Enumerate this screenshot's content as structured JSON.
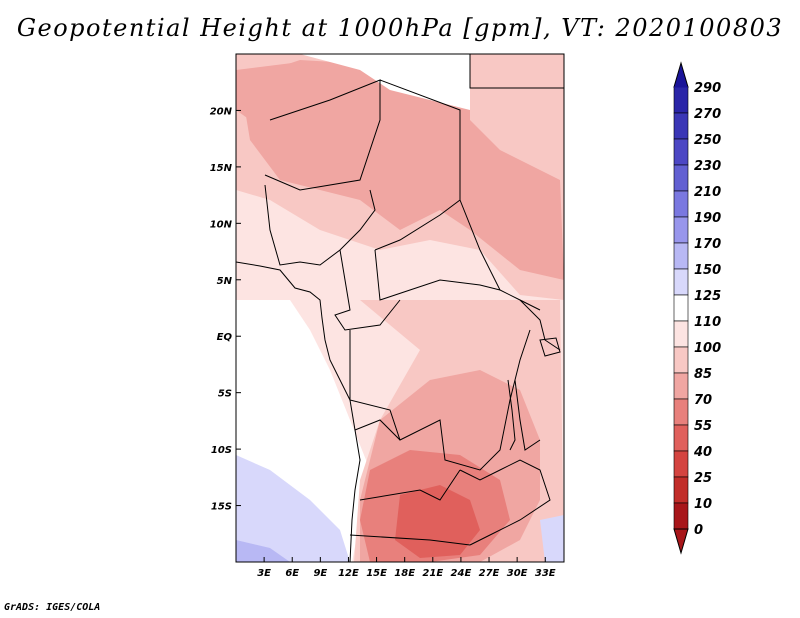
{
  "title": "Geopotential Height at 1000hPa [gpm], VT: 2020100803",
  "credit": "GrADS: IGES/COLA",
  "map": {
    "variable": "Geopotential Height",
    "level": "1000hPa",
    "units": "gpm",
    "valid_time": "2020100803",
    "lon_range": [
      0,
      35
    ],
    "lat_range": [
      -20,
      25
    ],
    "lon_ticks": [
      {
        "value": 3,
        "label": "3E"
      },
      {
        "value": 6,
        "label": "6E"
      },
      {
        "value": 9,
        "label": "9E"
      },
      {
        "value": 12,
        "label": "12E"
      },
      {
        "value": 15,
        "label": "15E"
      },
      {
        "value": 18,
        "label": "18E"
      },
      {
        "value": 21,
        "label": "21E"
      },
      {
        "value": 24,
        "label": "24E"
      },
      {
        "value": 27,
        "label": "27E"
      },
      {
        "value": 30,
        "label": "30E"
      },
      {
        "value": 33,
        "label": "33E"
      }
    ],
    "lat_ticks": [
      {
        "value": 20,
        "label": "20N"
      },
      {
        "value": 15,
        "label": "15N"
      },
      {
        "value": 10,
        "label": "10N"
      },
      {
        "value": 5,
        "label": "5N"
      },
      {
        "value": 0,
        "label": "EQ"
      },
      {
        "value": -5,
        "label": "5S"
      },
      {
        "value": -10,
        "label": "10S"
      },
      {
        "value": -15,
        "label": "15S"
      }
    ]
  },
  "colorbar": {
    "levels": [
      {
        "value": 290,
        "label": "290",
        "color": "#1a1499"
      },
      {
        "value": 270,
        "label": "270",
        "color": "#2a25a8"
      },
      {
        "value": 250,
        "label": "250",
        "color": "#3a36b6"
      },
      {
        "value": 230,
        "label": "230",
        "color": "#4c47c4"
      },
      {
        "value": 210,
        "label": "210",
        "color": "#6260d2"
      },
      {
        "value": 190,
        "label": "190",
        "color": "#7a78e0"
      },
      {
        "value": 170,
        "label": "170",
        "color": "#9896ec"
      },
      {
        "value": 150,
        "label": "150",
        "color": "#b8b8f4"
      },
      {
        "value": 125,
        "label": "125",
        "color": "#d8d8fb"
      },
      {
        "value": 110,
        "label": "110",
        "color": "#ffffff"
      },
      {
        "value": 100,
        "label": "100",
        "color": "#fde4e2"
      },
      {
        "value": 85,
        "label": "85",
        "color": "#f8c8c4"
      },
      {
        "value": 70,
        "label": "70",
        "color": "#f0a6a2"
      },
      {
        "value": 55,
        "label": "55",
        "color": "#e8807c"
      },
      {
        "value": 40,
        "label": "40",
        "color": "#e0605c"
      },
      {
        "value": 25,
        "label": "25",
        "color": "#d44440"
      },
      {
        "value": 10,
        "label": "10",
        "color": "#c22e2a"
      },
      {
        "value": 0,
        "label": "0",
        "color": "#a8161a"
      }
    ]
  }
}
